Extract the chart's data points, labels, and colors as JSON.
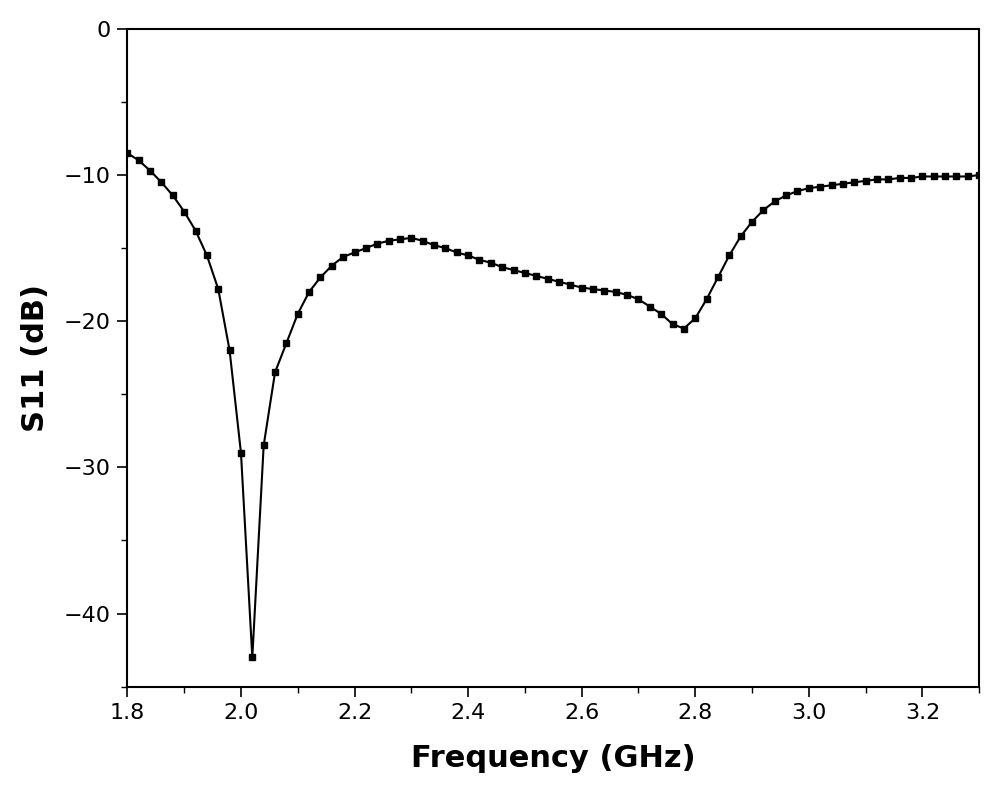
{
  "title": "",
  "xlabel": "Frequency (GHz)",
  "ylabel": "S11 (dB)",
  "xlim": [
    1.8,
    3.3
  ],
  "ylim": [
    -45,
    0
  ],
  "xticks": [
    1.8,
    2.0,
    2.2,
    2.4,
    2.6,
    2.8,
    3.0,
    3.2
  ],
  "yticks": [
    0,
    -10,
    -20,
    -30,
    -40
  ],
  "line_color": "#000000",
  "marker": "s",
  "markersize": 5,
  "linewidth": 1.5,
  "background_color": "#ffffff",
  "x": [
    1.8,
    1.82,
    1.84,
    1.86,
    1.88,
    1.9,
    1.92,
    1.94,
    1.96,
    1.98,
    2.0,
    2.02,
    2.04,
    2.06,
    2.08,
    2.1,
    2.12,
    2.14,
    2.16,
    2.18,
    2.2,
    2.22,
    2.24,
    2.26,
    2.28,
    2.3,
    2.32,
    2.34,
    2.36,
    2.38,
    2.4,
    2.42,
    2.44,
    2.46,
    2.48,
    2.5,
    2.52,
    2.54,
    2.56,
    2.58,
    2.6,
    2.62,
    2.64,
    2.66,
    2.68,
    2.7,
    2.72,
    2.74,
    2.76,
    2.78,
    2.8,
    2.82,
    2.84,
    2.86,
    2.88,
    2.9,
    2.92,
    2.94,
    2.96,
    2.98,
    3.0,
    3.02,
    3.04,
    3.06,
    3.08,
    3.1,
    3.12,
    3.14,
    3.16,
    3.18,
    3.2,
    3.22,
    3.24,
    3.26,
    3.28,
    3.3
  ],
  "y": [
    -8.5,
    -9.0,
    -9.7,
    -10.5,
    -11.4,
    -12.5,
    -13.8,
    -15.5,
    -17.8,
    -22.0,
    -29.0,
    -43.0,
    -28.5,
    -23.5,
    -21.5,
    -19.5,
    -18.0,
    -17.0,
    -16.2,
    -15.6,
    -15.3,
    -15.0,
    -14.7,
    -14.5,
    -14.4,
    -14.3,
    -14.5,
    -14.8,
    -15.0,
    -15.3,
    -15.5,
    -15.8,
    -16.0,
    -16.3,
    -16.5,
    -16.7,
    -16.9,
    -17.1,
    -17.3,
    -17.5,
    -17.7,
    -17.8,
    -17.9,
    -18.0,
    -18.2,
    -18.5,
    -19.0,
    -19.5,
    -20.2,
    -20.5,
    -19.8,
    -18.5,
    -17.0,
    -15.5,
    -14.2,
    -13.2,
    -12.4,
    -11.8,
    -11.4,
    -11.1,
    -10.9,
    -10.8,
    -10.7,
    -10.6,
    -10.5,
    -10.4,
    -10.3,
    -10.3,
    -10.2,
    -10.2,
    -10.1,
    -10.1,
    -10.1,
    -10.1,
    -10.1,
    -10.0
  ]
}
